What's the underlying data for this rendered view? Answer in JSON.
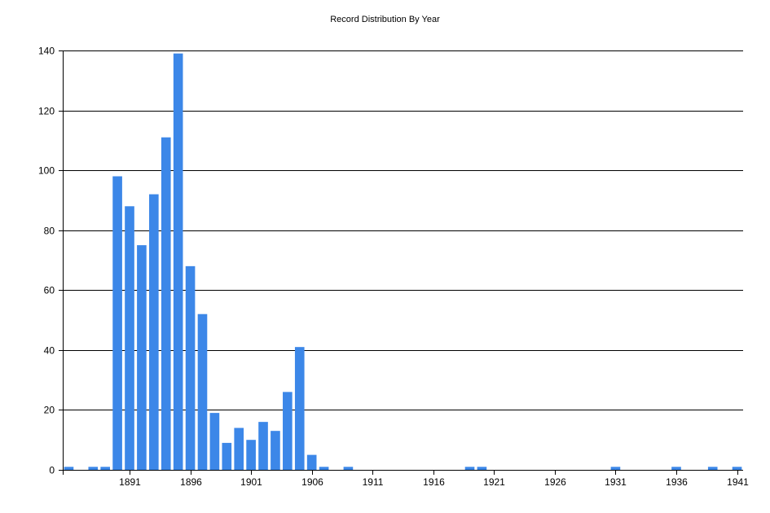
{
  "chart_data": {
    "type": "bar",
    "title": "Record Distribution By Year",
    "xlabel": "",
    "ylabel": "",
    "xlim": [
      1885.5,
      1941.5
    ],
    "ylim": [
      0,
      140
    ],
    "x_ticks": [
      1891,
      1896,
      1901,
      1906,
      1911,
      1916,
      1921,
      1926,
      1931,
      1936,
      1941
    ],
    "y_ticks": [
      0,
      20,
      40,
      60,
      80,
      100,
      120,
      140
    ],
    "grid": "horizontal",
    "bar_color": "#3c87e8",
    "x": [
      1886,
      1888,
      1889,
      1890,
      1891,
      1892,
      1893,
      1894,
      1895,
      1896,
      1897,
      1898,
      1899,
      1900,
      1901,
      1902,
      1903,
      1904,
      1905,
      1906,
      1907,
      1909,
      1919,
      1920,
      1931,
      1936,
      1939,
      1941
    ],
    "values": [
      1,
      1,
      1,
      98,
      88,
      75,
      92,
      111,
      139,
      68,
      52,
      19,
      9,
      14,
      10,
      16,
      13,
      26,
      41,
      5,
      1,
      1,
      1,
      1,
      1,
      1,
      1,
      1
    ]
  }
}
